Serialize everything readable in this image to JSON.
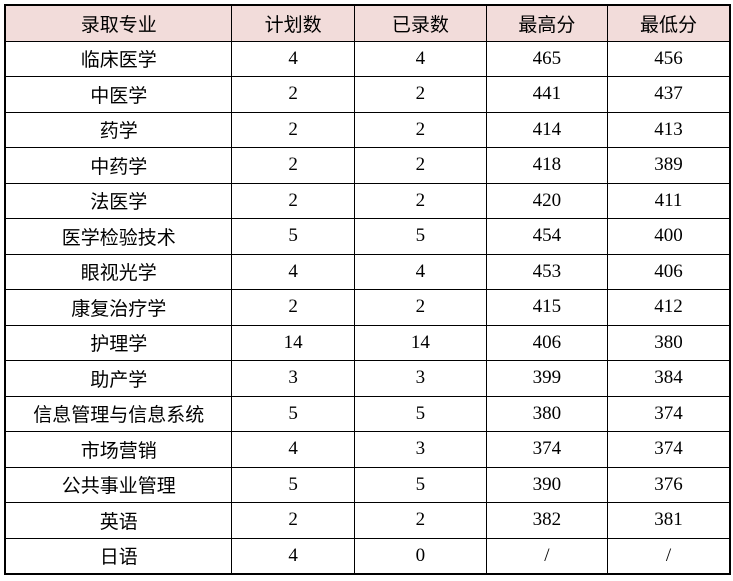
{
  "chart_data": {
    "type": "table",
    "columns": [
      "录取专业",
      "计划数",
      "已录数",
      "最高分",
      "最低分"
    ],
    "rows": [
      [
        "临床医学",
        "4",
        "4",
        "465",
        "456"
      ],
      [
        "中医学",
        "2",
        "2",
        "441",
        "437"
      ],
      [
        "药学",
        "2",
        "2",
        "414",
        "413"
      ],
      [
        "中药学",
        "2",
        "2",
        "418",
        "389"
      ],
      [
        "法医学",
        "2",
        "2",
        "420",
        "411"
      ],
      [
        "医学检验技术",
        "5",
        "5",
        "454",
        "400"
      ],
      [
        "眼视光学",
        "4",
        "4",
        "453",
        "406"
      ],
      [
        "康复治疗学",
        "2",
        "2",
        "415",
        "412"
      ],
      [
        "护理学",
        "14",
        "14",
        "406",
        "380"
      ],
      [
        "助产学",
        "3",
        "3",
        "399",
        "384"
      ],
      [
        "信息管理与信息系统",
        "5",
        "5",
        "380",
        "374"
      ],
      [
        "市场营销",
        "4",
        "3",
        "374",
        "374"
      ],
      [
        "公共事业管理",
        "5",
        "5",
        "390",
        "376"
      ],
      [
        "英语",
        "2",
        "2",
        "382",
        "381"
      ],
      [
        "日语",
        "4",
        "0",
        "/",
        "/"
      ]
    ]
  },
  "colors": {
    "header_bg": "#f2dcda",
    "border": "#000000",
    "text": "#000000"
  }
}
